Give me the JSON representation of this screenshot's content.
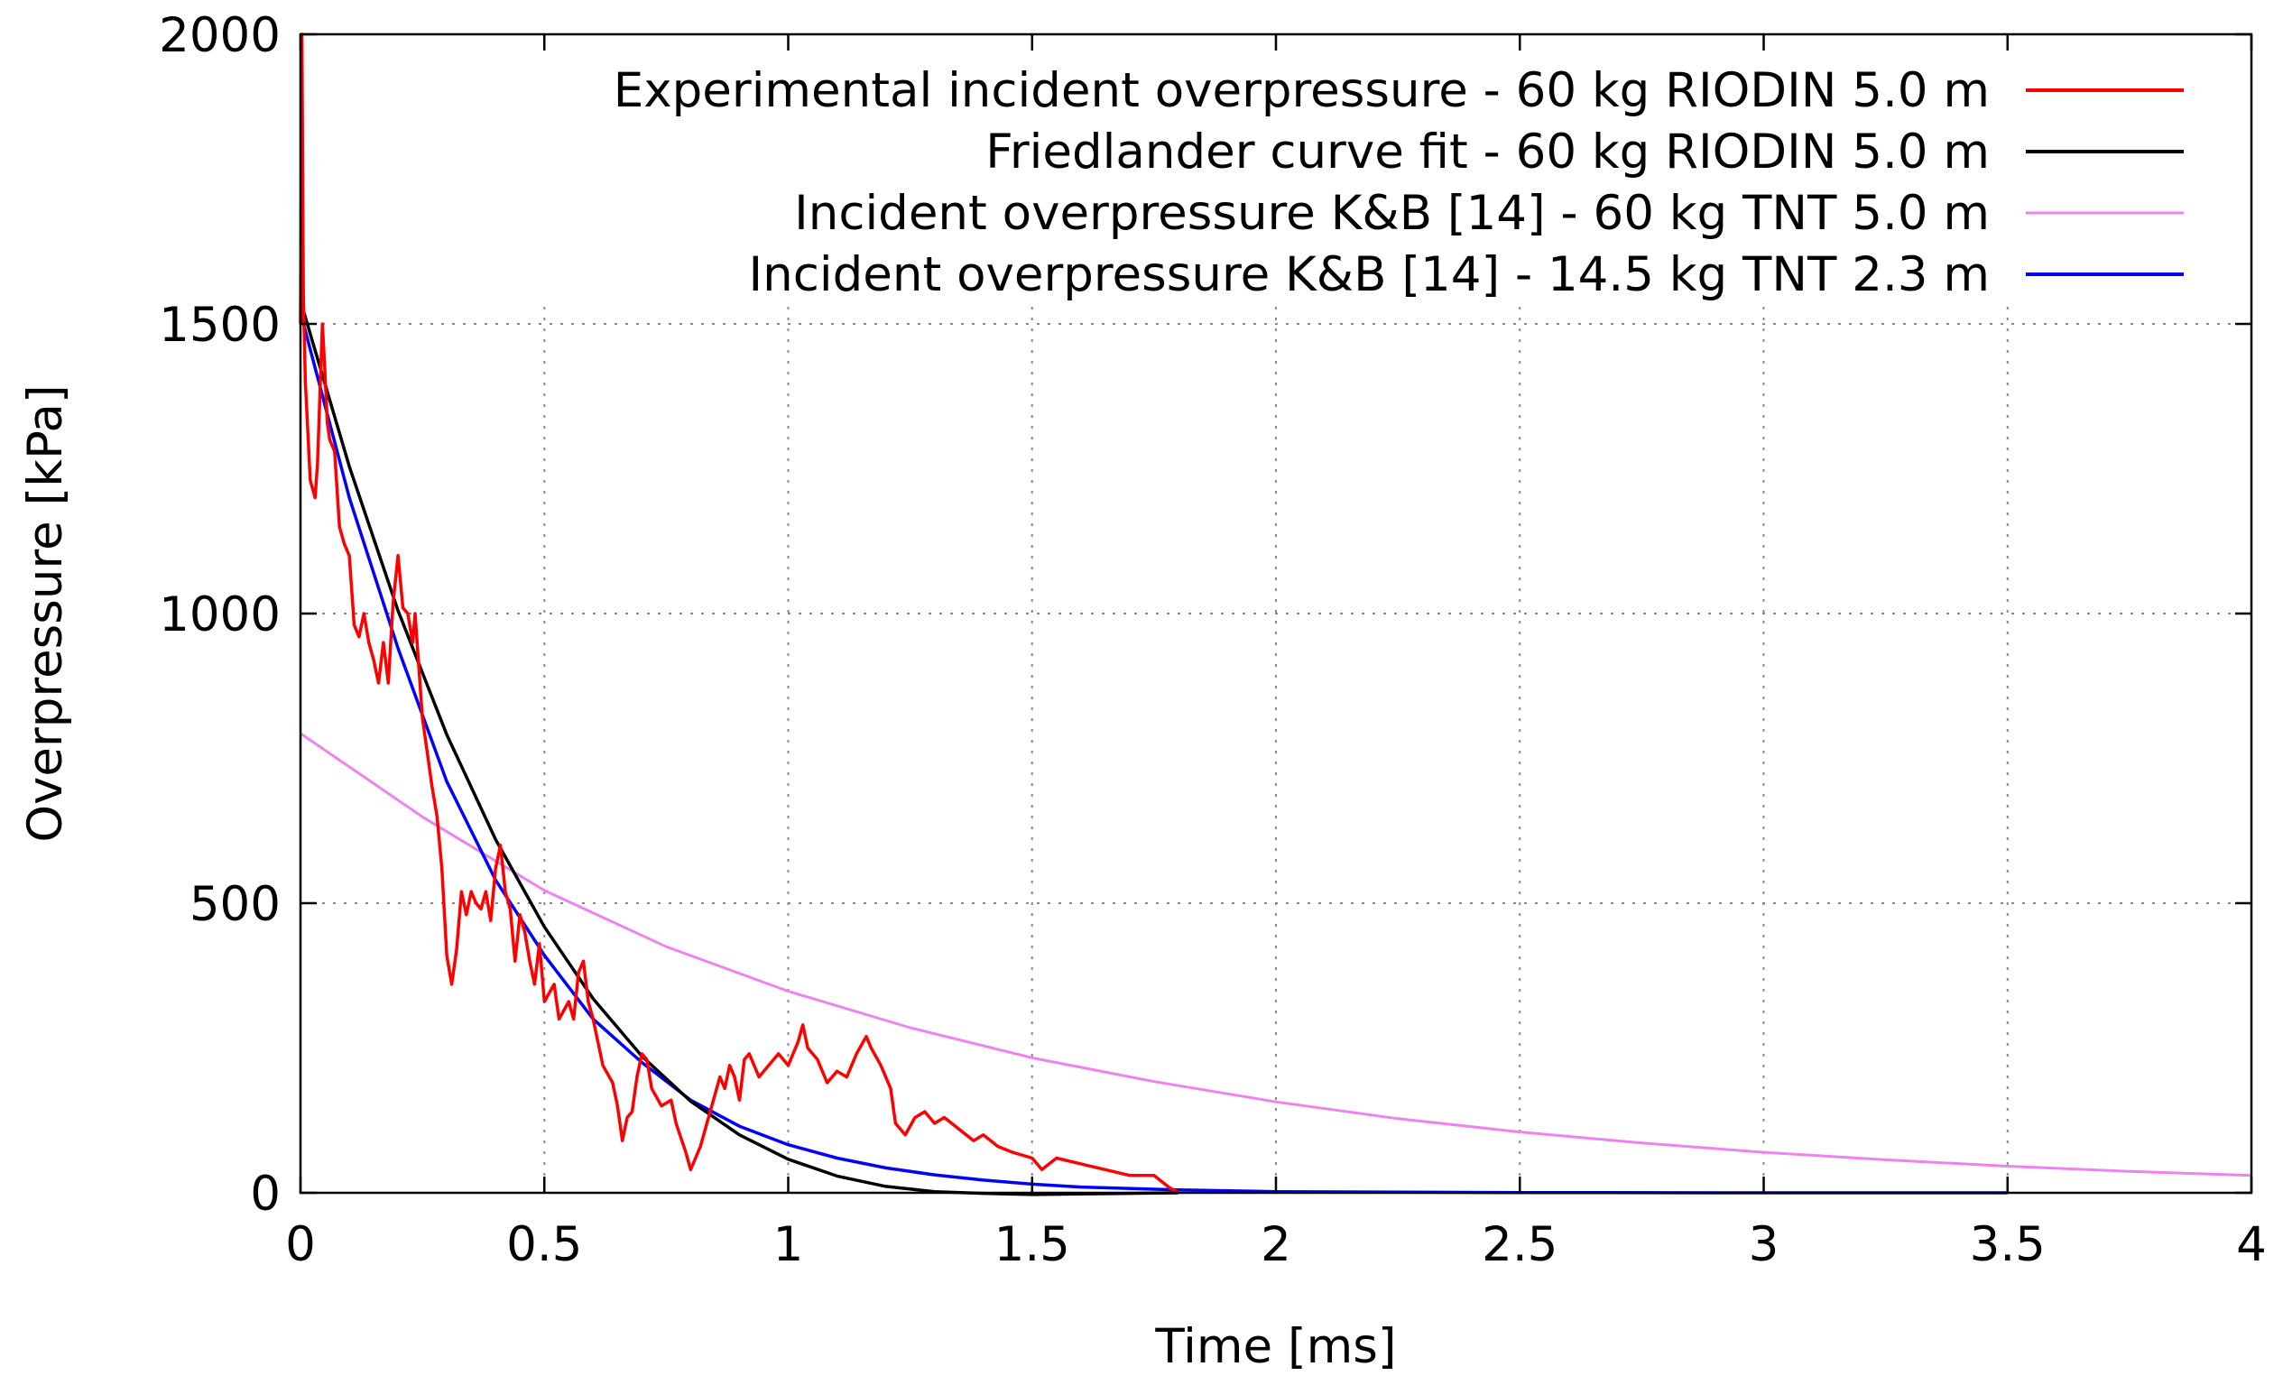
{
  "chart_data": {
    "type": "line",
    "title": "",
    "xlabel": "Time [ms]",
    "ylabel": "Overpressure [kPa]",
    "xlim": [
      0,
      4
    ],
    "ylim": [
      0,
      2000
    ],
    "grid": true,
    "legend_position": "top-right",
    "x_ticks": [
      {
        "value": 0,
        "label": "0"
      },
      {
        "value": 0.5,
        "label": "0.5"
      },
      {
        "value": 1,
        "label": "1"
      },
      {
        "value": 1.5,
        "label": "1.5"
      },
      {
        "value": 2,
        "label": "2"
      },
      {
        "value": 2.5,
        "label": "2.5"
      },
      {
        "value": 3,
        "label": "3"
      },
      {
        "value": 3.5,
        "label": "3.5"
      },
      {
        "value": 4,
        "label": "4"
      }
    ],
    "y_ticks": [
      {
        "value": 0,
        "label": "0"
      },
      {
        "value": 500,
        "label": "500"
      },
      {
        "value": 1000,
        "label": "1000"
      },
      {
        "value": 1500,
        "label": "1500"
      },
      {
        "value": 2000,
        "label": "2000"
      }
    ],
    "series": [
      {
        "name": "Experimental incident overpressure - 60 kg RIODIN 5.0 m",
        "color": "#ff0000",
        "points": [
          [
            0,
            1500
          ],
          [
            0.003,
            2000
          ],
          [
            0.006,
            1550
          ],
          [
            0.01,
            1400
          ],
          [
            0.02,
            1230
          ],
          [
            0.03,
            1200
          ],
          [
            0.035,
            1260
          ],
          [
            0.04,
            1380
          ],
          [
            0.045,
            1500
          ],
          [
            0.05,
            1420
          ],
          [
            0.055,
            1330
          ],
          [
            0.06,
            1300
          ],
          [
            0.07,
            1280
          ],
          [
            0.08,
            1150
          ],
          [
            0.09,
            1120
          ],
          [
            0.1,
            1100
          ],
          [
            0.11,
            980
          ],
          [
            0.12,
            960
          ],
          [
            0.13,
            1000
          ],
          [
            0.14,
            950
          ],
          [
            0.15,
            920
          ],
          [
            0.16,
            880
          ],
          [
            0.17,
            950
          ],
          [
            0.18,
            880
          ],
          [
            0.19,
            1020
          ],
          [
            0.2,
            1100
          ],
          [
            0.21,
            1010
          ],
          [
            0.22,
            1000
          ],
          [
            0.23,
            950
          ],
          [
            0.235,
            1000
          ],
          [
            0.24,
            940
          ],
          [
            0.25,
            820
          ],
          [
            0.26,
            760
          ],
          [
            0.27,
            700
          ],
          [
            0.28,
            650
          ],
          [
            0.29,
            560
          ],
          [
            0.3,
            410
          ],
          [
            0.31,
            360
          ],
          [
            0.32,
            420
          ],
          [
            0.33,
            520
          ],
          [
            0.34,
            480
          ],
          [
            0.35,
            520
          ],
          [
            0.36,
            500
          ],
          [
            0.37,
            490
          ],
          [
            0.38,
            520
          ],
          [
            0.39,
            470
          ],
          [
            0.4,
            560
          ],
          [
            0.41,
            600
          ],
          [
            0.42,
            520
          ],
          [
            0.43,
            490
          ],
          [
            0.44,
            400
          ],
          [
            0.45,
            480
          ],
          [
            0.46,
            450
          ],
          [
            0.47,
            400
          ],
          [
            0.48,
            360
          ],
          [
            0.49,
            430
          ],
          [
            0.5,
            330
          ],
          [
            0.52,
            360
          ],
          [
            0.53,
            300
          ],
          [
            0.55,
            330
          ],
          [
            0.56,
            300
          ],
          [
            0.57,
            380
          ],
          [
            0.58,
            400
          ],
          [
            0.59,
            330
          ],
          [
            0.6,
            300
          ],
          [
            0.62,
            220
          ],
          [
            0.64,
            190
          ],
          [
            0.65,
            150
          ],
          [
            0.66,
            90
          ],
          [
            0.67,
            130
          ],
          [
            0.68,
            140
          ],
          [
            0.69,
            200
          ],
          [
            0.7,
            240
          ],
          [
            0.71,
            230
          ],
          [
            0.72,
            180
          ],
          [
            0.74,
            150
          ],
          [
            0.76,
            160
          ],
          [
            0.77,
            120
          ],
          [
            0.79,
            70
          ],
          [
            0.8,
            40
          ],
          [
            0.81,
            60
          ],
          [
            0.82,
            80
          ],
          [
            0.84,
            140
          ],
          [
            0.86,
            200
          ],
          [
            0.87,
            180
          ],
          [
            0.88,
            220
          ],
          [
            0.89,
            200
          ],
          [
            0.9,
            160
          ],
          [
            0.91,
            230
          ],
          [
            0.92,
            240
          ],
          [
            0.94,
            200
          ],
          [
            0.96,
            220
          ],
          [
            0.98,
            240
          ],
          [
            1.0,
            220
          ],
          [
            1.02,
            260
          ],
          [
            1.03,
            290
          ],
          [
            1.04,
            250
          ],
          [
            1.06,
            230
          ],
          [
            1.08,
            190
          ],
          [
            1.1,
            210
          ],
          [
            1.12,
            200
          ],
          [
            1.14,
            240
          ],
          [
            1.16,
            270
          ],
          [
            1.17,
            250
          ],
          [
            1.19,
            220
          ],
          [
            1.21,
            180
          ],
          [
            1.22,
            120
          ],
          [
            1.24,
            100
          ],
          [
            1.26,
            130
          ],
          [
            1.28,
            140
          ],
          [
            1.3,
            120
          ],
          [
            1.32,
            130
          ],
          [
            1.35,
            110
          ],
          [
            1.38,
            90
          ],
          [
            1.4,
            100
          ],
          [
            1.43,
            80
          ],
          [
            1.46,
            70
          ],
          [
            1.5,
            60
          ],
          [
            1.52,
            40
          ],
          [
            1.55,
            60
          ],
          [
            1.6,
            50
          ],
          [
            1.65,
            40
          ],
          [
            1.7,
            30
          ],
          [
            1.75,
            30
          ],
          [
            1.78,
            10
          ],
          [
            1.8,
            0
          ]
        ]
      },
      {
        "name": "Friedlander curve fit - 60 kg RIODIN 5.0 m",
        "color": "#000000",
        "points": [
          [
            0,
            1540
          ],
          [
            0.1,
            1254
          ],
          [
            0.2,
            1005
          ],
          [
            0.3,
            791
          ],
          [
            0.4,
            610
          ],
          [
            0.5,
            459
          ],
          [
            0.6,
            335
          ],
          [
            0.7,
            236
          ],
          [
            0.8,
            158
          ],
          [
            0.9,
            100
          ],
          [
            1.0,
            58
          ],
          [
            1.1,
            29
          ],
          [
            1.2,
            11
          ],
          [
            1.3,
            2
          ],
          [
            1.4,
            -1
          ],
          [
            1.5,
            -3
          ],
          [
            1.6,
            -2
          ],
          [
            1.7,
            -1
          ],
          [
            1.8,
            0
          ]
        ]
      },
      {
        "name": "Incident overpressure K&B [14] - 60 kg TNT 5.0 m",
        "color": "#ee82ee",
        "points": [
          [
            0,
            793
          ],
          [
            0.25,
            649
          ],
          [
            0.5,
            522
          ],
          [
            0.75,
            425
          ],
          [
            1.0,
            348
          ],
          [
            1.25,
            285
          ],
          [
            1.5,
            233
          ],
          [
            1.75,
            192
          ],
          [
            2.0,
            157
          ],
          [
            2.25,
            128
          ],
          [
            2.5,
            105
          ],
          [
            2.75,
            86
          ],
          [
            3.0,
            70
          ],
          [
            3.25,
            57
          ],
          [
            3.5,
            46
          ],
          [
            3.75,
            37
          ],
          [
            4.0,
            30
          ]
        ]
      },
      {
        "name": "Incident overpressure K&B [14] - 14.5 kg TNT 2.3 m",
        "color": "#0000ff",
        "points": [
          [
            0,
            1520
          ],
          [
            0.1,
            1200
          ],
          [
            0.2,
            940
          ],
          [
            0.3,
            710
          ],
          [
            0.4,
            540
          ],
          [
            0.5,
            410
          ],
          [
            0.6,
            300
          ],
          [
            0.7,
            225
          ],
          [
            0.8,
            160
          ],
          [
            0.9,
            115
          ],
          [
            1.0,
            83
          ],
          [
            1.1,
            60
          ],
          [
            1.2,
            43
          ],
          [
            1.3,
            31
          ],
          [
            1.4,
            22
          ],
          [
            1.5,
            15
          ],
          [
            1.6,
            10
          ],
          [
            1.8,
            5
          ],
          [
            2.0,
            2
          ],
          [
            2.5,
            0.5
          ],
          [
            3.0,
            0
          ],
          [
            3.5,
            0
          ]
        ]
      }
    ]
  }
}
